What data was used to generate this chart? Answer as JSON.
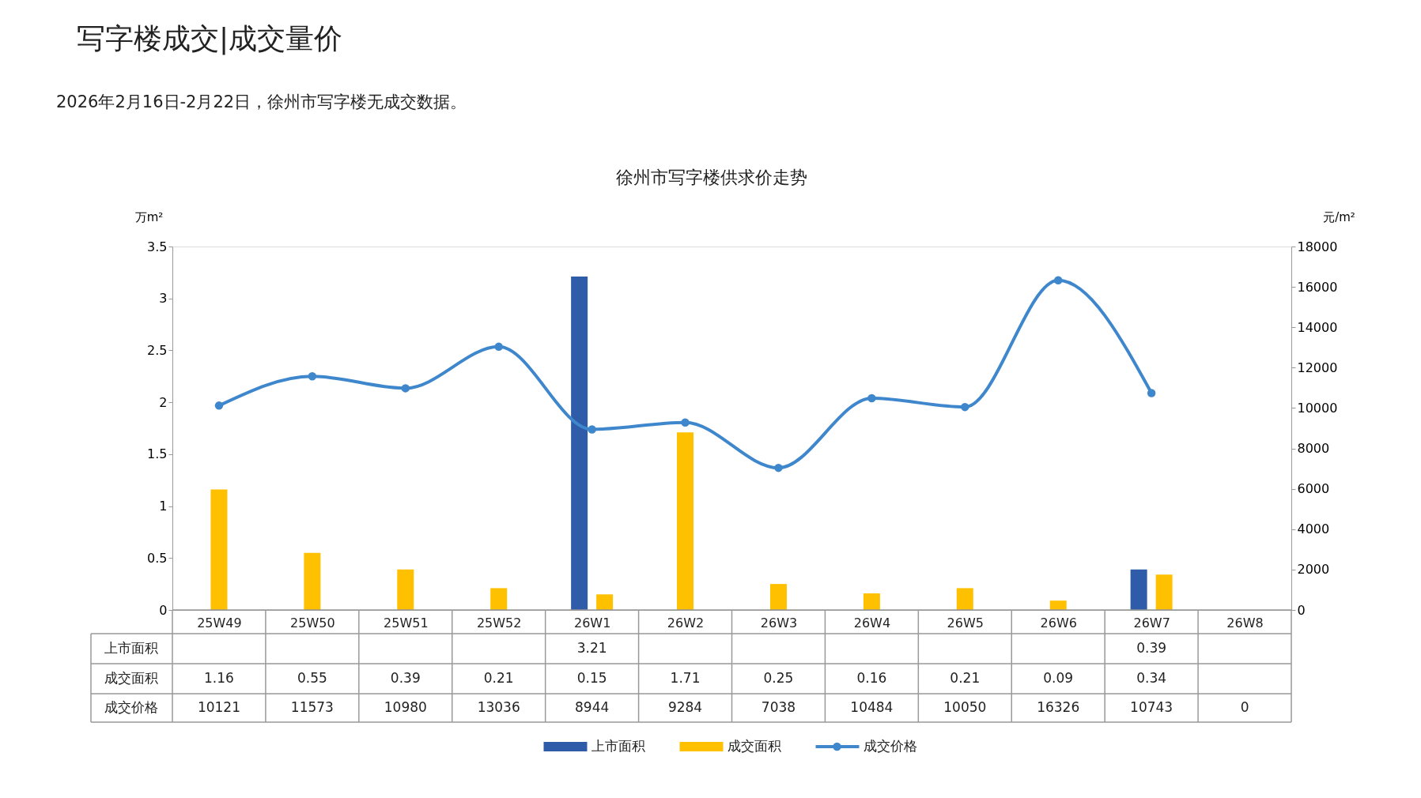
{
  "chart_data": {
    "type": "bar",
    "title": "徐州市写字楼供求价走势",
    "annotations": [
      "写字楼成交|成交量价",
      "2026年2月16日-2月22日，徐州市写字楼无成交数据。"
    ],
    "ylabel": "万m²",
    "y2label": "元/m²",
    "categories": [
      "25W49",
      "25W50",
      "25W51",
      "25W52",
      "26W1",
      "26W2",
      "26W3",
      "26W4",
      "26W5",
      "26W6",
      "26W7",
      "26W8"
    ],
    "series": [
      {
        "name": "上市面积",
        "color": "#2e5ca8",
        "values": [
          null,
          null,
          null,
          null,
          3.21,
          null,
          null,
          null,
          null,
          null,
          0.39,
          null
        ]
      },
      {
        "name": "成交面积",
        "color": "#ffc000",
        "values": [
          1.16,
          0.55,
          0.39,
          0.21,
          0.15,
          1.71,
          0.25,
          0.16,
          0.21,
          0.09,
          0.34,
          null
        ]
      },
      {
        "name": "成交价格",
        "type": "line",
        "axis": "y2",
        "color": "#3f87cc",
        "values": [
          10121,
          11573,
          10980,
          13036,
          8944,
          9284,
          7038,
          10484,
          10050,
          16326,
          10743,
          null
        ],
        "value_labels": [
          "10121",
          "11573",
          "10980",
          "13036",
          "8944",
          "9284",
          "7038",
          "10484",
          "10050",
          "16326",
          "10743",
          "0"
        ]
      }
    ],
    "ylim": [
      0,
      3.5
    ],
    "yticks": [
      0,
      0.5,
      1,
      1.5,
      2,
      2.5,
      3,
      3.5
    ],
    "y2lim": [
      0,
      18000
    ],
    "y2ticks": [
      0,
      2000,
      4000,
      6000,
      8000,
      10000,
      12000,
      14000,
      16000,
      18000
    ],
    "data_labels": true,
    "marker": "circle",
    "legend": "bottom"
  }
}
